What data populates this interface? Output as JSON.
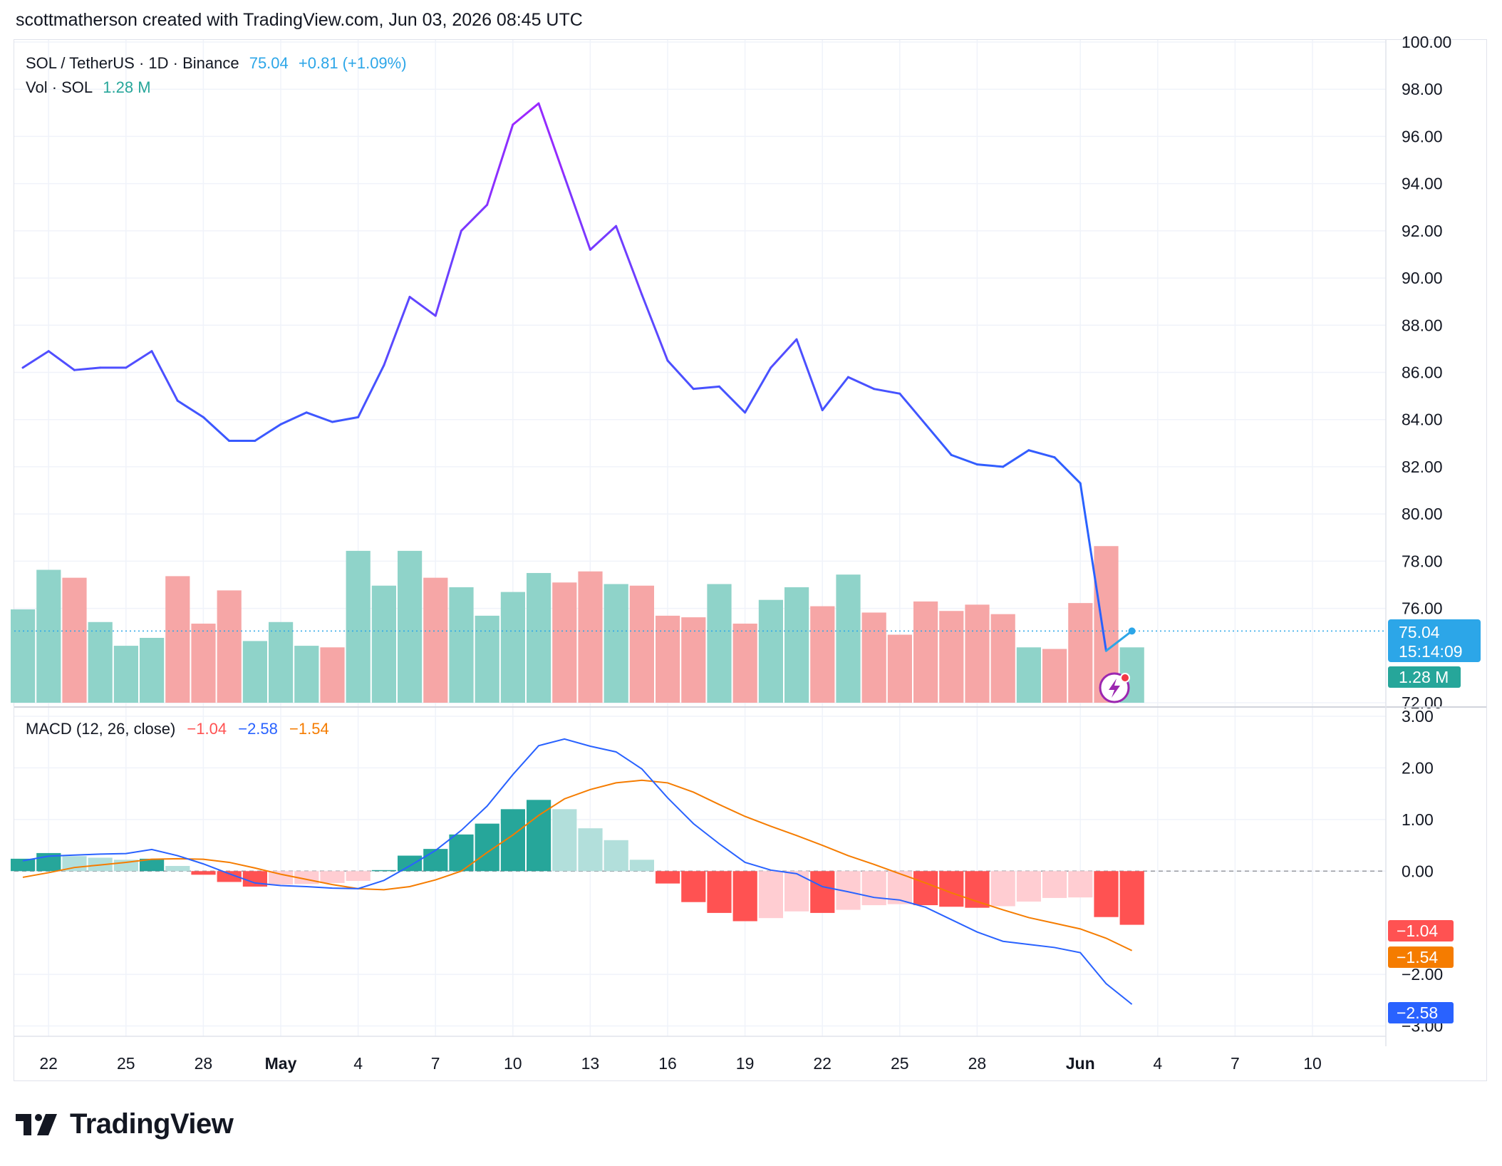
{
  "header": {
    "author_line": "scottmatherson created with TradingView.com, Jun 03, 2026 08:45 UTC"
  },
  "legend": {
    "symbol": "SOL / TetherUS · 1D · Binance",
    "last": "75.04",
    "change": "+0.81 (+1.09%)",
    "vol_label": "Vol · SOL",
    "vol_value": "1.28 M"
  },
  "macd_legend": {
    "label": "MACD (12, 26, close)",
    "hist": "−1.04",
    "macd": "−2.58",
    "signal": "−1.54"
  },
  "badges": {
    "price": "75.04",
    "countdown": "15:14:09",
    "volume": "1.28 M",
    "hist": "−1.04",
    "signal": "−1.54",
    "macd": "−2.58"
  },
  "footer": {
    "logo_text": "TradingView"
  },
  "colors": {
    "price_purple": "#9c27ff",
    "price_blue": "#2962ff",
    "up_vol": "#8fd3c9",
    "down_vol": "#f6a6a6",
    "macd_line": "#2962ff",
    "signal_line": "#f57c00",
    "hist_up_strong": "#26a69a",
    "hist_up_weak": "#b2dfdb",
    "hist_down_strong": "#ff5252",
    "hist_down_weak": "#ffcdd2",
    "last_price": "#2ca6e8"
  },
  "chart_data": [
    {
      "type": "line",
      "title": "SOL / TetherUS · 1D · Binance",
      "x": [
        "Apr 21",
        "Apr 22",
        "Apr 23",
        "Apr 24",
        "Apr 25",
        "Apr 26",
        "Apr 27",
        "Apr 28",
        "Apr 29",
        "Apr 30",
        "May 1",
        "May 2",
        "May 3",
        "May 4",
        "May 5",
        "May 6",
        "May 7",
        "May 8",
        "May 9",
        "May 10",
        "May 11",
        "May 12",
        "May 13",
        "May 14",
        "May 15",
        "May 16",
        "May 17",
        "May 18",
        "May 19",
        "May 20",
        "May 21",
        "May 22",
        "May 23",
        "May 24",
        "May 25",
        "May 26",
        "May 27",
        "May 28",
        "May 29",
        "May 30",
        "May 31",
        "Jun 1",
        "Jun 2",
        "Jun 3"
      ],
      "close": [
        86.2,
        86.9,
        86.1,
        86.2,
        86.2,
        86.9,
        84.8,
        84.1,
        83.1,
        83.1,
        83.8,
        84.3,
        83.9,
        84.1,
        86.3,
        89.2,
        88.4,
        92.0,
        93.1,
        96.5,
        97.4,
        94.3,
        91.2,
        92.2,
        89.3,
        86.5,
        85.3,
        85.4,
        84.3,
        86.2,
        87.4,
        84.4,
        85.8,
        85.3,
        85.1,
        83.8,
        82.5,
        82.1,
        82.0,
        82.7,
        82.4,
        81.3,
        74.2,
        75.04
      ],
      "ylim": [
        72,
        100
      ],
      "y_ticks": [
        "100.00",
        "98.00",
        "96.00",
        "94.00",
        "92.00",
        "90.00",
        "88.00",
        "86.00",
        "84.00",
        "82.00",
        "80.00",
        "78.00",
        "76.00",
        "72.00"
      ],
      "last_value": 75.04
    },
    {
      "type": "bar",
      "title": "Vol · SOL",
      "volume_relative": [
        0.59,
        0.84,
        0.79,
        0.51,
        0.36,
        0.41,
        0.8,
        0.5,
        0.71,
        0.39,
        0.51,
        0.36,
        0.35,
        0.96,
        0.74,
        0.96,
        0.79,
        0.73,
        0.55,
        0.7,
        0.82,
        0.76,
        0.83,
        0.75,
        0.74,
        0.55,
        0.54,
        0.75,
        0.5,
        0.65,
        0.73,
        0.61,
        0.81,
        0.57,
        0.43,
        0.64,
        0.58,
        0.62,
        0.56,
        0.35,
        0.34,
        0.63,
        0.99,
        0.35
      ],
      "direction": [
        "up",
        "up",
        "down",
        "up",
        "up",
        "up",
        "down",
        "down",
        "down",
        "up",
        "up",
        "up",
        "down",
        "up",
        "up",
        "up",
        "down",
        "up",
        "up",
        "up",
        "up",
        "down",
        "down",
        "up",
        "down",
        "down",
        "down",
        "up",
        "down",
        "up",
        "up",
        "down",
        "up",
        "down",
        "down",
        "down",
        "down",
        "down",
        "down",
        "up",
        "down",
        "down",
        "down",
        "up"
      ],
      "last_value": "1.28 M"
    },
    {
      "type": "bar",
      "title": "MACD (12, 26, close)",
      "histogram": [
        0.24,
        0.35,
        0.29,
        0.26,
        0.22,
        0.24,
        0.1,
        -0.07,
        -0.21,
        -0.3,
        -0.26,
        -0.25,
        -0.23,
        -0.19,
        0.02,
        0.3,
        0.43,
        0.71,
        0.92,
        1.2,
        1.38,
        1.2,
        0.83,
        0.6,
        0.22,
        -0.24,
        -0.6,
        -0.81,
        -0.97,
        -0.91,
        -0.78,
        -0.81,
        -0.75,
        -0.66,
        -0.64,
        -0.66,
        -0.69,
        -0.71,
        -0.68,
        -0.59,
        -0.52,
        -0.51,
        -0.89,
        -1.04
      ],
      "macd": [
        0.2,
        0.29,
        0.31,
        0.33,
        0.34,
        0.42,
        0.3,
        0.14,
        -0.05,
        -0.23,
        -0.28,
        -0.3,
        -0.33,
        -0.34,
        -0.18,
        0.1,
        0.4,
        0.79,
        1.26,
        1.87,
        2.43,
        2.56,
        2.42,
        2.31,
        1.98,
        1.42,
        0.92,
        0.53,
        0.17,
        0.02,
        -0.05,
        -0.3,
        -0.4,
        -0.51,
        -0.56,
        -0.7,
        -0.94,
        -1.18,
        -1.36,
        -1.42,
        -1.48,
        -1.58,
        -2.18,
        -2.58
      ],
      "signal": [
        -0.12,
        -0.03,
        0.07,
        0.12,
        0.17,
        0.23,
        0.24,
        0.23,
        0.17,
        0.06,
        -0.06,
        -0.16,
        -0.26,
        -0.34,
        -0.36,
        -0.3,
        -0.17,
        0.0,
        0.36,
        0.7,
        1.08,
        1.4,
        1.58,
        1.71,
        1.76,
        1.71,
        1.53,
        1.29,
        1.06,
        0.87,
        0.69,
        0.5,
        0.3,
        0.13,
        -0.05,
        -0.23,
        -0.42,
        -0.59,
        -0.75,
        -0.9,
        -1.01,
        -1.12,
        -1.3,
        -1.54
      ],
      "ylim": [
        -3.2,
        3.0
      ],
      "y_ticks": [
        "3.00",
        "2.00",
        "1.00",
        "0.00",
        "−2.00",
        "−3.00"
      ]
    }
  ],
  "time_axis": [
    {
      "label": "22",
      "bold": false
    },
    {
      "label": "25",
      "bold": false
    },
    {
      "label": "28",
      "bold": false
    },
    {
      "label": "May",
      "bold": true
    },
    {
      "label": "4",
      "bold": false
    },
    {
      "label": "7",
      "bold": false
    },
    {
      "label": "10",
      "bold": false
    },
    {
      "label": "13",
      "bold": false
    },
    {
      "label": "16",
      "bold": false
    },
    {
      "label": "19",
      "bold": false
    },
    {
      "label": "22",
      "bold": false
    },
    {
      "label": "25",
      "bold": false
    },
    {
      "label": "28",
      "bold": false
    },
    {
      "label": "Jun",
      "bold": true
    },
    {
      "label": "4",
      "bold": false
    },
    {
      "label": "7",
      "bold": false
    },
    {
      "label": "10",
      "bold": false
    }
  ]
}
